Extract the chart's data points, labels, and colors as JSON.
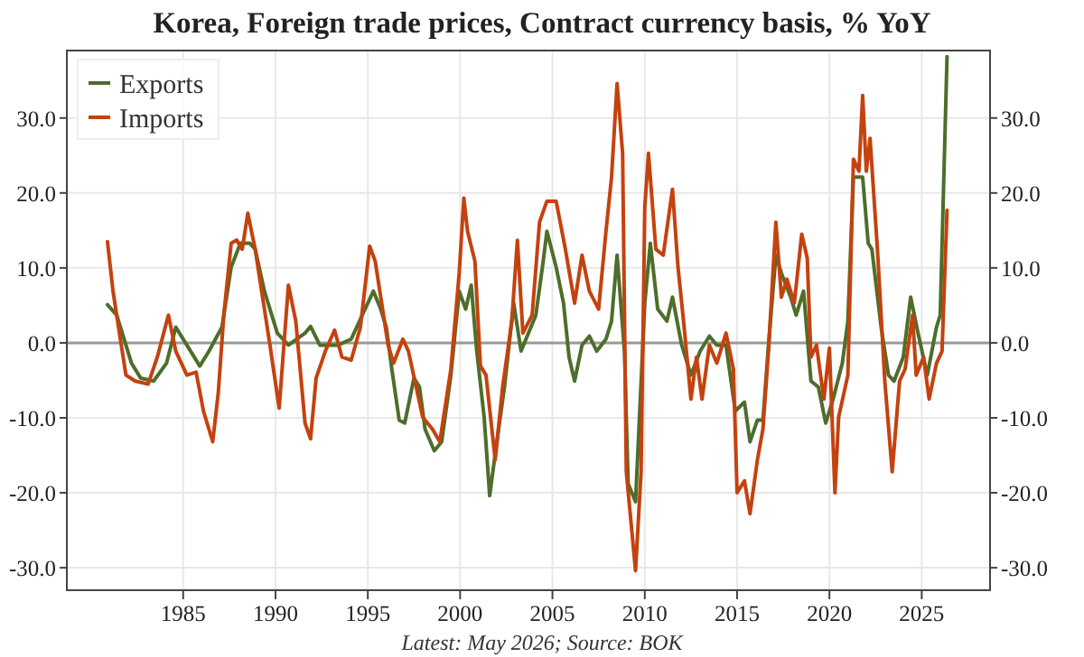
{
  "chart_data": {
    "type": "line",
    "title": "Korea, Foreign trade prices, Contract currency basis, % YoY",
    "annotations": [
      "Latest: May 2026; Source: BOK"
    ],
    "xlim": [
      1978.7,
      2028.7
    ],
    "xticks": [
      1985,
      1990,
      1995,
      2000,
      2005,
      2010,
      2015,
      2020,
      2025
    ],
    "ylim": [
      -33,
      39
    ],
    "yticks": [
      {
        "value": -30,
        "label": "-30.0"
      },
      {
        "value": -20,
        "label": "-20.0"
      },
      {
        "value": -10,
        "label": "-10.0"
      },
      {
        "value": 0,
        "label": "0.0"
      },
      {
        "value": 10,
        "label": "10.0"
      },
      {
        "value": 20,
        "label": "20.0"
      },
      {
        "value": 30,
        "label": "30.0"
      }
    ],
    "y2lim": [
      -33,
      39
    ],
    "y2ticks": [
      {
        "value": -30,
        "label": "-30.0"
      },
      {
        "value": -20,
        "label": "-20.0"
      },
      {
        "value": -10,
        "label": "-10.0"
      },
      {
        "value": 0,
        "label": "0.0"
      },
      {
        "value": 10,
        "label": "10.0"
      },
      {
        "value": 20,
        "label": "20.0"
      },
      {
        "value": 30,
        "label": "30.0"
      }
    ],
    "grid": true,
    "legend": "top left",
    "line_style": "solid",
    "marker": "none",
    "ref_lines": [
      {
        "axis": "y",
        "value": 0,
        "color": "#999999"
      }
    ],
    "series": [
      {
        "name": "Exports",
        "color": "#4d6e2a",
        "x": [
          1980.9,
          1981.4,
          1981.9,
          1982.2,
          1982.7,
          1983.4,
          1984.1,
          1984.6,
          1985.2,
          1985.9,
          1986.4,
          1987.1,
          1987.6,
          1988.1,
          1988.6,
          1988.9,
          1989.4,
          1990.1,
          1990.7,
          1991.6,
          1991.9,
          1992.4,
          1993.4,
          1994.1,
          1994.7,
          1995.3,
          1995.7,
          1996.0,
          1996.3,
          1996.7,
          1997.0,
          1997.5,
          1997.8,
          1998.1,
          1998.6,
          1999.0,
          1999.5,
          1999.95,
          2000.3,
          2000.6,
          2000.9,
          2001.3,
          2001.6,
          2001.9,
          2002.4,
          2002.9,
          2003.3,
          2003.7,
          2004.1,
          2004.5,
          2004.7,
          2005.2,
          2005.6,
          2005.9,
          2006.2,
          2006.6,
          2007.0,
          2007.4,
          2007.9,
          2008.2,
          2008.5,
          2008.9,
          2009.1,
          2009.5,
          2010.0,
          2010.3,
          2010.7,
          2011.2,
          2011.5,
          2012.0,
          2012.5,
          2013.0,
          2013.5,
          2013.9,
          2014.4,
          2014.9,
          2015.4,
          2015.7,
          2016.1,
          2016.4,
          2016.7,
          2017.1,
          2017.4,
          2017.9,
          2018.2,
          2018.6,
          2019.0,
          2019.4,
          2019.8,
          2020.2,
          2020.7,
          2021.0,
          2021.3,
          2021.8,
          2022.1,
          2022.3,
          2022.8,
          2023.2,
          2023.5,
          2024.0,
          2024.4,
          2024.8,
          2025.3,
          2025.8,
          2026.0,
          2026.37
        ],
        "values": [
          5.1,
          3.7,
          -0.3,
          -2.7,
          -4.7,
          -5.1,
          -2.7,
          2.1,
          -0.3,
          -3.1,
          -1.1,
          2.1,
          10.1,
          13.3,
          13.3,
          12.5,
          6.9,
          1.3,
          -0.3,
          1.3,
          2.2,
          -0.3,
          -0.3,
          0.5,
          3.7,
          6.9,
          4.5,
          2.1,
          -3.5,
          -10.3,
          -10.7,
          -4.7,
          -5.9,
          -11.5,
          -14.4,
          -13.2,
          -4.3,
          6.9,
          4.5,
          7.7,
          -1.1,
          -9.9,
          -20.4,
          -14.8,
          -5.9,
          5.3,
          -1.1,
          1.3,
          3.7,
          10.9,
          14.9,
          10.1,
          5.3,
          -1.9,
          -5.1,
          -0.3,
          0.9,
          -1.1,
          0.5,
          2.9,
          11.7,
          -1.1,
          -18.8,
          -21.2,
          5.3,
          13.3,
          4.5,
          2.9,
          6.1,
          -0.3,
          -4.3,
          -1.1,
          0.9,
          -0.3,
          -0.3,
          -9.1,
          -7.9,
          -13.2,
          -10.3,
          -10.3,
          -0.3,
          11.7,
          9.3,
          6.1,
          3.7,
          6.9,
          -5.1,
          -5.9,
          -10.7,
          -7.5,
          -2.7,
          2.9,
          22.1,
          22.1,
          13.3,
          12.5,
          2.1,
          -4.3,
          -5.1,
          -1.9,
          6.1,
          1.3,
          -4.3,
          2.1,
          3.7,
          38.2
        ]
      },
      {
        "name": "Imports",
        "color": "#c4420f",
        "x": [
          1980.9,
          1981.2,
          1981.9,
          1982.4,
          1983.1,
          1983.6,
          1984.2,
          1984.6,
          1985.2,
          1985.7,
          1986.1,
          1986.6,
          1986.9,
          1987.2,
          1987.6,
          1987.9,
          1988.2,
          1988.5,
          1988.9,
          1989.4,
          1989.7,
          1990.2,
          1990.7,
          1991.1,
          1991.6,
          1991.9,
          1992.2,
          1992.7,
          1993.2,
          1993.6,
          1994.1,
          1994.6,
          1995.1,
          1995.4,
          1996.1,
          1996.4,
          1996.9,
          1997.2,
          1997.97,
          1998.5,
          1998.9,
          1999.5,
          1999.95,
          2000.2,
          2000.4,
          2000.8,
          2001.1,
          2001.4,
          2001.9,
          2002.3,
          2002.8,
          2003.1,
          2003.4,
          2003.9,
          2004.3,
          2004.7,
          2005.2,
          2005.7,
          2006.2,
          2006.6,
          2007.0,
          2007.5,
          2007.9,
          2008.2,
          2008.5,
          2008.8,
          2009.0,
          2009.5,
          2009.8,
          2010.0,
          2010.2,
          2010.6,
          2011.0,
          2011.5,
          2011.8,
          2012.1,
          2012.5,
          2012.8,
          2013.1,
          2013.5,
          2013.9,
          2014.4,
          2014.8,
          2015.0,
          2015.4,
          2015.7,
          2016.1,
          2016.4,
          2016.7,
          2017.1,
          2017.4,
          2017.7,
          2018.1,
          2018.5,
          2018.8,
          2019.0,
          2019.3,
          2019.7,
          2020.0,
          2020.3,
          2020.5,
          2021.0,
          2021.3,
          2021.6,
          2021.8,
          2022.0,
          2022.2,
          2022.6,
          2023.0,
          2023.4,
          2023.8,
          2024.1,
          2024.5,
          2024.7,
          2025.1,
          2025.4,
          2025.8,
          2026.1,
          2026.37
        ],
        "values": [
          13.5,
          6.9,
          -4.3,
          -5.1,
          -5.5,
          -1.9,
          3.7,
          -1.1,
          -4.3,
          -3.9,
          -9.1,
          -13.2,
          -6.7,
          3.7,
          13.3,
          13.7,
          12.5,
          17.3,
          12.5,
          4.5,
          -0.3,
          -8.7,
          7.7,
          2.9,
          -10.7,
          -12.8,
          -4.7,
          -1.1,
          1.7,
          -1.9,
          -2.3,
          2.1,
          12.9,
          10.9,
          -0.3,
          -2.7,
          0.5,
          -1.1,
          -9.9,
          -11.5,
          -13.2,
          -3.5,
          9.3,
          19.3,
          14.9,
          10.9,
          -3.1,
          -4.3,
          -15.6,
          -5.9,
          2.9,
          13.7,
          1.3,
          3.7,
          16.1,
          18.9,
          18.9,
          12.5,
          5.3,
          11.7,
          6.9,
          4.5,
          14.9,
          22.1,
          34.6,
          25.3,
          -17.2,
          -30.4,
          -17.2,
          18.1,
          25.3,
          12.5,
          11.7,
          20.5,
          10.1,
          2.9,
          -7.5,
          -1.9,
          -7.5,
          -0.3,
          -2.7,
          1.3,
          -3.5,
          -20.0,
          -18.4,
          -22.8,
          -15.6,
          -11.5,
          -1.1,
          16.1,
          6.1,
          8.5,
          5.3,
          14.5,
          11.3,
          -1.9,
          -0.3,
          -7.5,
          -0.7,
          -20.0,
          -9.9,
          -4.3,
          24.5,
          22.9,
          33.0,
          22.9,
          27.3,
          12.5,
          -5.1,
          -17.2,
          -5.1,
          -3.5,
          3.7,
          -4.3,
          -1.9,
          -7.5,
          -2.7,
          -1.1,
          17.7
        ]
      }
    ]
  }
}
